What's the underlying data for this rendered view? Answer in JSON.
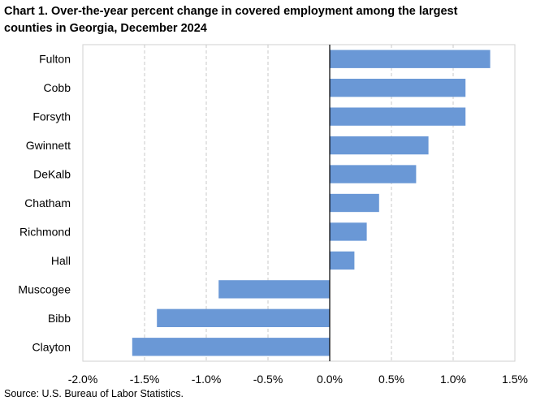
{
  "title": "Chart 1. Over-the-year percent change in covered employment among the largest\ncounties in Georgia, December 2024",
  "source": "Source: U.S. Bureau of Labor Statistics.",
  "colors": {
    "bar": "#6a98d6",
    "grid": "#c8c8c8",
    "axis": "#000000",
    "frame": "#d0d0d0"
  },
  "chart_data": {
    "type": "bar",
    "orientation": "horizontal",
    "categories": [
      "Fulton",
      "Cobb",
      "Forsyth",
      "Gwinnett",
      "DeKalb",
      "Chatham",
      "Richmond",
      "Hall",
      "Muscogee",
      "Bibb",
      "Clayton"
    ],
    "values": [
      1.3,
      1.1,
      1.1,
      0.8,
      0.7,
      0.4,
      0.3,
      0.2,
      -0.9,
      -1.4,
      -1.6
    ],
    "title": "Chart 1. Over-the-year percent change in covered employment among the largest counties in Georgia, December 2024",
    "xlabel": "",
    "ylabel": "",
    "xlim": [
      -2.0,
      1.5
    ],
    "xticks": [
      -2.0,
      -1.5,
      -1.0,
      -0.5,
      0.0,
      0.5,
      1.0,
      1.5
    ],
    "xtick_labels": [
      "-2.0%",
      "-1.5%",
      "-1.0%",
      "-0.5%",
      "0.0%",
      "0.5%",
      "1.0%",
      "1.5%"
    ],
    "grid": "vertical dashed",
    "legend": "none"
  }
}
